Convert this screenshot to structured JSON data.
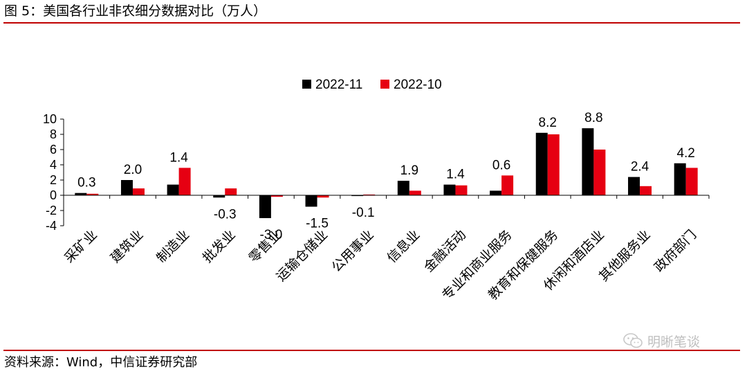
{
  "figure": {
    "title": "图 5：美国各行业非农细分数据对比（万人）",
    "source": "资料来源：Wind，中信证券研究部",
    "watermark": "明晰笔谈",
    "watermark_icon": "wechat-icon"
  },
  "chart_data": {
    "type": "bar",
    "categories": [
      "采矿业",
      "建筑业",
      "制造业",
      "批发业",
      "零售业",
      "运输仓储业",
      "公用事业",
      "信息业",
      "金融活动",
      "专业和商业服务",
      "教育和保健服务",
      "休闲和酒店业",
      "其他服务业",
      "政府部门"
    ],
    "series": [
      {
        "name": "2022-11",
        "color": "#000000",
        "values": [
          0.3,
          2.0,
          1.4,
          -0.3,
          -3.0,
          -1.5,
          -0.1,
          1.9,
          1.4,
          0.6,
          8.2,
          8.8,
          2.4,
          4.2
        ]
      },
      {
        "name": "2022-10",
        "color": "#e60012",
        "values": [
          0.2,
          0.9,
          3.6,
          0.9,
          -0.2,
          -0.3,
          0.1,
          0.6,
          1.3,
          2.6,
          8.0,
          6.0,
          1.2,
          3.6
        ]
      }
    ],
    "data_labels": [
      "0.3",
      "2.0",
      "1.4",
      "-0.3",
      "-3.0",
      "-1.5",
      "-0.1",
      "1.9",
      "1.4",
      "0.6",
      "8.2",
      "8.8",
      "2.4",
      "4.2"
    ],
    "yticks": [
      "10",
      "8",
      "6",
      "4",
      "2",
      "0",
      "-2",
      "-4"
    ],
    "ylim": [
      -4,
      10
    ],
    "legend_position": "top-center",
    "grid": false
  }
}
